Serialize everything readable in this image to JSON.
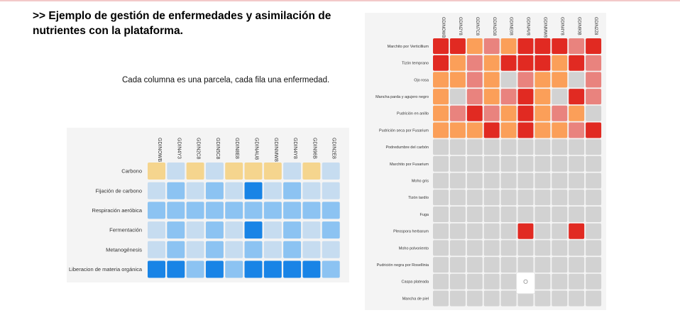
{
  "title": ">> Ejemplo de gestión de enfermedades y asimilación de nutrientes con la plataforma.",
  "caption": "Cada columna es una parcela, cada fila una enfermedad.",
  "colors": {
    "panel_bg": "#f4f4f4",
    "empty": "#d2d2d2",
    "yellow": "#f5d58e",
    "blue_light": "#c6dcf0",
    "blue_mid": "#8cc3f2",
    "blue_dark": "#1984e6",
    "orange": "#fb9f59",
    "salmon": "#e9837e",
    "red": "#e12a22"
  },
  "nutrients": {
    "columns": [
      "GDINOWB",
      "GDIN4Y3",
      "GDIN2C8",
      "GDIN5C8",
      "GDIN8E8",
      "GDINAU8",
      "GDINMW8",
      "GDIN4Y8",
      "GDIN96B",
      "GDIN2E8"
    ],
    "rows": [
      "Carbono",
      "Fijación de carbono",
      "Respiración aeróbica",
      "Fermentación",
      "Metanogénesis",
      "Liberacion de materia orgánica"
    ],
    "cells": [
      [
        "yellow",
        "blue_light",
        "yellow",
        "blue_light",
        "yellow",
        "yellow",
        "yellow",
        "blue_light",
        "yellow",
        "blue_light"
      ],
      [
        "blue_light",
        "blue_mid",
        "blue_light",
        "blue_mid",
        "blue_light",
        "blue_dark",
        "blue_light",
        "blue_mid",
        "blue_light",
        "blue_light"
      ],
      [
        "blue_mid",
        "blue_mid",
        "blue_mid",
        "blue_mid",
        "blue_mid",
        "blue_mid",
        "blue_mid",
        "blue_mid",
        "blue_mid",
        "blue_mid"
      ],
      [
        "blue_light",
        "blue_mid",
        "blue_light",
        "blue_mid",
        "blue_light",
        "blue_dark",
        "blue_light",
        "blue_mid",
        "blue_light",
        "blue_mid"
      ],
      [
        "blue_light",
        "blue_mid",
        "blue_light",
        "blue_mid",
        "blue_light",
        "blue_mid",
        "blue_light",
        "blue_mid",
        "blue_light",
        "blue_light"
      ],
      [
        "blue_dark",
        "blue_dark",
        "blue_mid",
        "blue_dark",
        "blue_mid",
        "blue_dark",
        "blue_dark",
        "blue_dark",
        "blue_dark",
        "blue_mid"
      ]
    ]
  },
  "diseases": {
    "columns": [
      "GDINOWB",
      "GDIN2Y8",
      "GDIN7C8",
      "GDIN2G8",
      "GDINE08",
      "GDINAV8",
      "GDINMW8",
      "GDIN4Y8",
      "GDIN90B",
      "GDIN2Z8"
    ],
    "rows": [
      "Marchito por Verticillium",
      "Tizón temprano",
      "Ojo rosa",
      "Mancha parda y agujero negro",
      "Pudrición en anillo",
      "Pudrición seca por Fusarium",
      "Podredumbre del carbón",
      "Marchito por Fusarium",
      "Moho gris",
      "Tizón tardío",
      "Fuga",
      "Pleospora herbarum",
      "Moho polvoriento",
      "Pudrición negra por Rosellinia",
      "Caspa plateada",
      "Mancha de piel"
    ],
    "cells": [
      [
        "red",
        "red",
        "orange",
        "salmon",
        "orange",
        "red",
        "red",
        "red",
        "salmon",
        "red"
      ],
      [
        "red",
        "orange",
        "salmon",
        "orange",
        "red",
        "red",
        "red",
        "orange",
        "red",
        "salmon"
      ],
      [
        "orange",
        "orange",
        "salmon",
        "orange",
        "empty",
        "salmon",
        "orange",
        "orange",
        "empty",
        "salmon"
      ],
      [
        "orange",
        "empty",
        "salmon",
        "orange",
        "salmon",
        "red",
        "orange",
        "empty",
        "red",
        "salmon"
      ],
      [
        "orange",
        "salmon",
        "red",
        "salmon",
        "orange",
        "red",
        "orange",
        "salmon",
        "orange",
        "empty"
      ],
      [
        "orange",
        "orange",
        "orange",
        "red",
        "orange",
        "red",
        "orange",
        "orange",
        "salmon",
        "red"
      ],
      [
        "empty",
        "empty",
        "empty",
        "empty",
        "empty",
        "empty",
        "empty",
        "empty",
        "empty",
        "empty"
      ],
      [
        "empty",
        "empty",
        "empty",
        "empty",
        "empty",
        "empty",
        "empty",
        "empty",
        "empty",
        "empty"
      ],
      [
        "empty",
        "empty",
        "empty",
        "empty",
        "empty",
        "empty",
        "empty",
        "empty",
        "empty",
        "empty"
      ],
      [
        "empty",
        "empty",
        "empty",
        "empty",
        "empty",
        "empty",
        "empty",
        "empty",
        "empty",
        "empty"
      ],
      [
        "empty",
        "empty",
        "empty",
        "empty",
        "empty",
        "empty",
        "empty",
        "empty",
        "empty",
        "empty"
      ],
      [
        "empty",
        "empty",
        "empty",
        "empty",
        "empty",
        "red",
        "empty",
        "empty",
        "red",
        "empty"
      ],
      [
        "empty",
        "empty",
        "empty",
        "empty",
        "empty",
        "empty",
        "empty",
        "empty",
        "empty",
        "empty"
      ],
      [
        "empty",
        "empty",
        "empty",
        "empty",
        "empty",
        "empty",
        "empty",
        "empty",
        "empty",
        "empty"
      ],
      [
        "empty",
        "empty",
        "empty",
        "empty",
        "empty",
        "empty",
        "empty",
        "empty",
        "empty",
        "empty"
      ],
      [
        "empty",
        "empty",
        "empty",
        "empty",
        "empty",
        "empty",
        "empty",
        "empty",
        "empty",
        "empty"
      ]
    ],
    "tooltip_cell": {
      "row": 14,
      "col": 5
    }
  },
  "tooltip_icon": "circle-indicator-icon"
}
